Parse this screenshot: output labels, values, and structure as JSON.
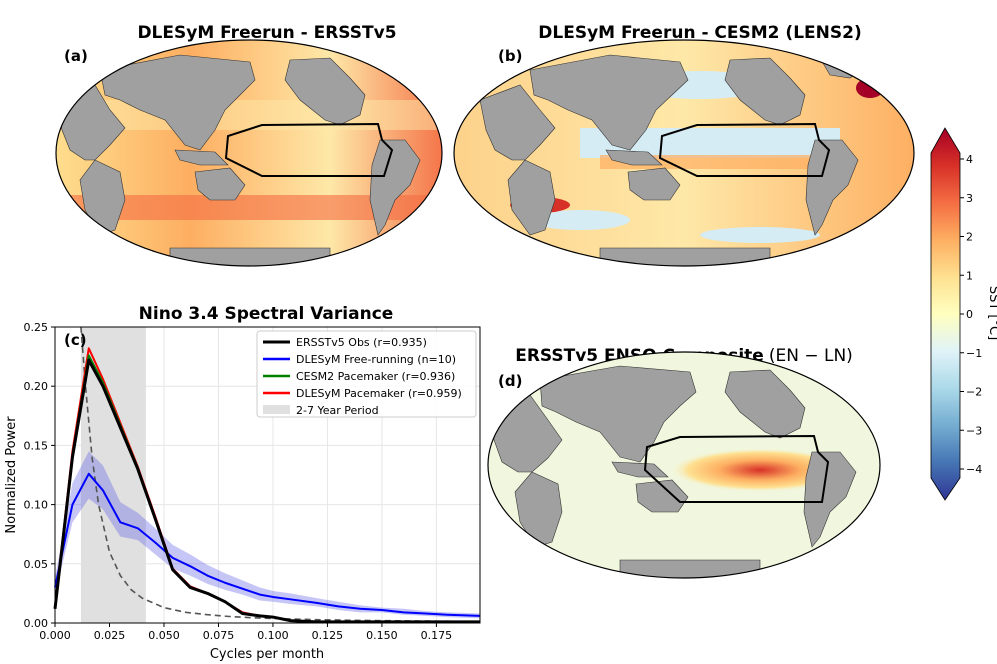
{
  "panels": {
    "a": {
      "label": "(a)",
      "title": "DLESyM Freerun - ERSSTv5"
    },
    "b": {
      "label": "(b)",
      "title": "DLESyM Freerun - CESM2 (LENS2)"
    },
    "d": {
      "label": "(d)",
      "title_bold": "ERSSTv5 ENSO Composite",
      "title_normal": "(EN − LN)"
    }
  },
  "colorbar": {
    "label": "SST [°C]",
    "ticks": [
      "4",
      "3",
      "2",
      "1",
      "0",
      "−1",
      "−2",
      "−3",
      "−4"
    ],
    "tick_values": [
      4,
      3,
      2,
      1,
      0,
      -1,
      -2,
      -3,
      -4
    ],
    "range": [
      -4.8,
      4.8
    ],
    "colors": [
      "#313695",
      "#4575b4",
      "#74add1",
      "#abd9e9",
      "#e0f3f8",
      "#ffffbf",
      "#fee090",
      "#fdae61",
      "#f46d43",
      "#d73027",
      "#a50026"
    ]
  },
  "chart_data": {
    "type": "line",
    "label": "(c)",
    "title": "Nino 3.4 Spectral Variance",
    "xlabel": "Cycles per month",
    "ylabel": "Normalized Power",
    "xlim": [
      0.0,
      0.195
    ],
    "ylim": [
      0.0,
      0.25
    ],
    "xticks": [
      0.0,
      0.025,
      0.05,
      0.075,
      0.1,
      0.125,
      0.15,
      0.175
    ],
    "xtick_labels": [
      "0.000",
      "0.025",
      "0.050",
      "0.075",
      "0.100",
      "0.125",
      "0.150",
      "0.175"
    ],
    "yticks": [
      0.0,
      0.05,
      0.1,
      0.15,
      0.2,
      0.25
    ],
    "ytick_labels": [
      "0.00",
      "0.05",
      "0.10",
      "0.15",
      "0.20",
      "0.25"
    ],
    "shaded_band": {
      "name": "2-7 Year Period",
      "x_range": [
        0.0119,
        0.0417
      ],
      "color": "#e0e0e0"
    },
    "series": [
      {
        "name": "ERSSTv5 Obs (r=0.935)",
        "color": "#000000",
        "x": [
          0.0,
          0.008,
          0.0155,
          0.022,
          0.03,
          0.038,
          0.046,
          0.054,
          0.062,
          0.07,
          0.078,
          0.086,
          0.094,
          0.1,
          0.108,
          0.12,
          0.13,
          0.14,
          0.15,
          0.16,
          0.17,
          0.18,
          0.195
        ],
        "y": [
          0.012,
          0.14,
          0.222,
          0.2,
          0.165,
          0.13,
          0.088,
          0.045,
          0.03,
          0.025,
          0.018,
          0.008,
          0.006,
          0.005,
          0.002,
          0.001,
          0.001,
          0.001,
          0.001,
          0.001,
          0.001,
          0.001,
          0.001
        ]
      },
      {
        "name": "DLESyM Free-running (n=10)",
        "color": "#0000ff",
        "x": [
          0.0,
          0.008,
          0.0155,
          0.022,
          0.03,
          0.038,
          0.046,
          0.054,
          0.062,
          0.07,
          0.078,
          0.086,
          0.094,
          0.1,
          0.108,
          0.12,
          0.13,
          0.14,
          0.15,
          0.16,
          0.17,
          0.18,
          0.195
        ],
        "y": [
          0.03,
          0.1,
          0.126,
          0.112,
          0.085,
          0.08,
          0.068,
          0.055,
          0.048,
          0.04,
          0.034,
          0.029,
          0.024,
          0.022,
          0.02,
          0.017,
          0.014,
          0.012,
          0.011,
          0.009,
          0.008,
          0.007,
          0.006
        ],
        "band_lo": [
          0.024,
          0.085,
          0.105,
          0.096,
          0.073,
          0.07,
          0.058,
          0.046,
          0.04,
          0.033,
          0.028,
          0.024,
          0.019,
          0.018,
          0.016,
          0.014,
          0.011,
          0.009,
          0.009,
          0.007,
          0.006,
          0.005,
          0.004
        ],
        "band_hi": [
          0.038,
          0.118,
          0.145,
          0.133,
          0.102,
          0.093,
          0.08,
          0.066,
          0.058,
          0.049,
          0.042,
          0.036,
          0.03,
          0.027,
          0.025,
          0.021,
          0.018,
          0.015,
          0.013,
          0.012,
          0.01,
          0.009,
          0.008
        ]
      },
      {
        "name": "CESM2 Pacemaker (r=0.936)",
        "color": "#008000",
        "x": [
          0.0,
          0.008,
          0.0155,
          0.022,
          0.03,
          0.038,
          0.046,
          0.054,
          0.062,
          0.07,
          0.078,
          0.086,
          0.094,
          0.1,
          0.108,
          0.12,
          0.13,
          0.14,
          0.15,
          0.16,
          0.17,
          0.18,
          0.195
        ],
        "y": [
          0.012,
          0.142,
          0.226,
          0.203,
          0.167,
          0.131,
          0.088,
          0.045,
          0.03,
          0.025,
          0.018,
          0.008,
          0.006,
          0.005,
          0.002,
          0.001,
          0.001,
          0.001,
          0.001,
          0.001,
          0.001,
          0.001,
          0.001
        ]
      },
      {
        "name": "DLESyM Pacemaker (r=0.959)",
        "color": "#ff0000",
        "x": [
          0.0,
          0.008,
          0.0155,
          0.022,
          0.03,
          0.038,
          0.046,
          0.054,
          0.062,
          0.07,
          0.078,
          0.086,
          0.094,
          0.1,
          0.108,
          0.12,
          0.13,
          0.14,
          0.15,
          0.16,
          0.17,
          0.18,
          0.195
        ],
        "y": [
          0.013,
          0.145,
          0.232,
          0.206,
          0.169,
          0.132,
          0.09,
          0.046,
          0.031,
          0.025,
          0.018,
          0.009,
          0.006,
          0.005,
          0.002,
          0.001,
          0.001,
          0.001,
          0.001,
          0.001,
          0.001,
          0.001,
          0.001
        ]
      },
      {
        "name": "red noise reference",
        "color": "#555555",
        "dashed": true,
        "x": [
          0.0119,
          0.014,
          0.017,
          0.02,
          0.025,
          0.03,
          0.035,
          0.04,
          0.05,
          0.06,
          0.07,
          0.08,
          0.09,
          0.1,
          0.12,
          0.14,
          0.16,
          0.18,
          0.195
        ],
        "y": [
          0.25,
          0.2,
          0.14,
          0.1,
          0.06,
          0.04,
          0.028,
          0.021,
          0.013,
          0.009,
          0.007,
          0.0055,
          0.0045,
          0.0038,
          0.0028,
          0.0022,
          0.0018,
          0.0015,
          0.0013
        ]
      }
    ],
    "legend": [
      "ERSSTv5 Obs (r=0.935)",
      "DLESyM Free-running (n=10)",
      "CESM2 Pacemaker (r=0.936)",
      "DLESyM Pacemaker (r=0.959)",
      "2-7 Year Period"
    ],
    "legend_position": "top-right"
  }
}
